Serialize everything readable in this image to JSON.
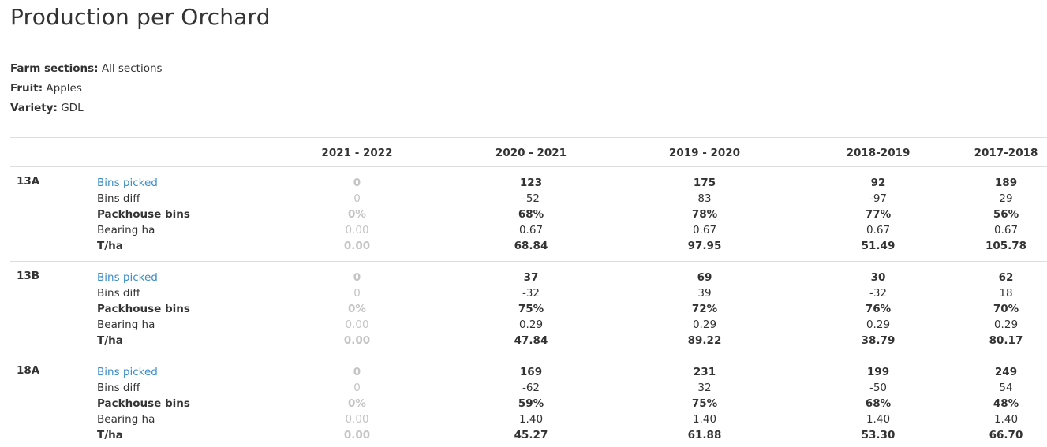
{
  "page": {
    "title": "Production per Orchard"
  },
  "filters": [
    {
      "label": "Farm sections:",
      "value": "All sections"
    },
    {
      "label": "Fruit:",
      "value": "Apples"
    },
    {
      "label": "Variety:",
      "value": "GDL"
    }
  ],
  "table": {
    "seasons": [
      "2021 - 2022",
      "2020 - 2021",
      "2019 - 2020",
      "2018-2019",
      "2017-2018"
    ],
    "metrics": [
      "Bins picked",
      "Bins diff",
      "Packhouse bins",
      "Bearing ha",
      "T/ha"
    ],
    "orchards": [
      {
        "name": "13A",
        "values": [
          [
            "0",
            "0",
            "0%",
            "0.00",
            "0.00"
          ],
          [
            "123",
            "-52",
            "68%",
            "0.67",
            "68.84"
          ],
          [
            "175",
            "83",
            "78%",
            "0.67",
            "97.95"
          ],
          [
            "92",
            "-97",
            "77%",
            "0.67",
            "51.49"
          ],
          [
            "189",
            "29",
            "56%",
            "0.67",
            "105.78"
          ]
        ]
      },
      {
        "name": "13B",
        "values": [
          [
            "0",
            "0",
            "0%",
            "0.00",
            "0.00"
          ],
          [
            "37",
            "-32",
            "75%",
            "0.29",
            "47.84"
          ],
          [
            "69",
            "39",
            "72%",
            "0.29",
            "89.22"
          ],
          [
            "30",
            "-32",
            "76%",
            "0.29",
            "38.79"
          ],
          [
            "62",
            "18",
            "70%",
            "0.29",
            "80.17"
          ]
        ]
      },
      {
        "name": "18A",
        "values": [
          [
            "0",
            "0",
            "0%",
            "0.00",
            "0.00"
          ],
          [
            "169",
            "-62",
            "59%",
            "1.40",
            "45.27"
          ],
          [
            "231",
            "32",
            "75%",
            "1.40",
            "61.88"
          ],
          [
            "199",
            "-50",
            "68%",
            "1.40",
            "53.30"
          ],
          [
            "249",
            "54",
            "48%",
            "1.40",
            "66.70"
          ]
        ]
      }
    ]
  },
  "colors": {
    "link": "#3a8dc5",
    "faded": "#c4c4c4",
    "text": "#333333",
    "border": "#dddddd"
  }
}
